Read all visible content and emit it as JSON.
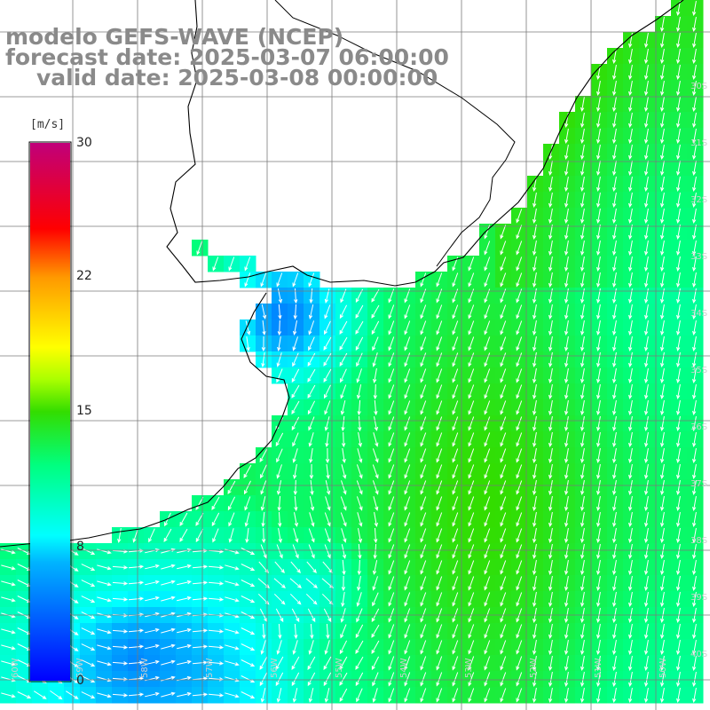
{
  "title": {
    "line1": "modelo GEFS-WAVE (NCEP)",
    "line2": "forecast date: 2025-03-07 06:00:00",
    "line3": "valid date: 2025-03-08 00:00:00"
  },
  "colorbar": {
    "unit": "[m/s]",
    "ticks": [
      "30",
      "22",
      "15",
      "8",
      "0"
    ],
    "range": [
      0,
      30
    ],
    "tick_values": [
      30,
      22,
      15,
      8,
      0
    ],
    "colors": [
      "#0000ff",
      "#00ffff",
      "#00ff00",
      "#ffff00",
      "#ff0000",
      "#c0007a"
    ]
  },
  "map": {
    "land_color": "#ffffff",
    "coastline_color": "#000000",
    "grid": true,
    "grid_color": "#7a7a7a",
    "arrow_color": "#ffffff",
    "field": "wind speed",
    "vector": "wind direction arrows",
    "lat_labels": [
      "30S",
      "31S",
      "32S",
      "33S",
      "34S",
      "35S",
      "36S",
      "37S",
      "38S",
      "39S",
      "40S"
    ],
    "lon_labels": [
      "60W",
      "59W",
      "58W",
      "57W",
      "56W",
      "55W",
      "54W",
      "53W",
      "52W",
      "51W",
      "50W"
    ]
  }
}
